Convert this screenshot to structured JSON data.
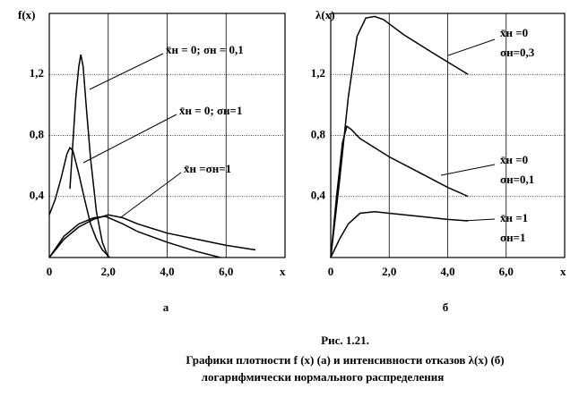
{
  "chart_data": [
    {
      "type": "line",
      "ylabel": "f(x)",
      "xlabel": "x",
      "panel": "а",
      "xlim": [
        0,
        8
      ],
      "ylim": [
        0,
        1.6
      ],
      "xticks": [
        0,
        {
          "value": 2,
          "label": "2,0"
        },
        {
          "value": 4,
          "label": "4,0"
        },
        {
          "value": 6,
          "label": "6,0"
        }
      ],
      "yticks": [
        {
          "value": 0.4,
          "label": "0,4"
        },
        {
          "value": 0.8,
          "label": "0,8"
        },
        {
          "value": 1.2,
          "label": "1,2"
        }
      ],
      "series": [
        {
          "color": "#000000",
          "x": [
            0.7,
            0.8,
            0.9,
            1.0,
            1.07,
            1.15,
            1.25,
            1.4,
            1.6,
            1.8,
            2.0
          ],
          "values": [
            0.45,
            0.75,
            1.05,
            1.25,
            1.33,
            1.25,
            1.0,
            0.65,
            0.3,
            0.1,
            0.0
          ]
        },
        {
          "color": "#000000",
          "x": [
            0,
            0.2,
            0.4,
            0.6,
            0.7,
            0.8,
            1.0,
            1.2,
            1.4,
            1.6,
            1.8,
            2.05
          ],
          "values": [
            0.28,
            0.38,
            0.52,
            0.68,
            0.72,
            0.7,
            0.55,
            0.38,
            0.22,
            0.12,
            0.05,
            0
          ]
        },
        {
          "color": "#000000",
          "x": [
            0,
            0.5,
            1.0,
            1.5,
            2.0,
            2.5,
            3,
            4,
            5,
            6,
            7
          ],
          "values": [
            0,
            0.12,
            0.2,
            0.25,
            0.28,
            0.26,
            0.22,
            0.16,
            0.12,
            0.08,
            0.05
          ]
        },
        {
          "color": "#000000",
          "x": [
            0,
            0.5,
            1.0,
            1.5,
            1.9,
            2.5,
            3,
            4,
            5,
            5.8
          ],
          "values": [
            0,
            0.14,
            0.22,
            0.26,
            0.27,
            0.22,
            0.17,
            0.1,
            0.04,
            0
          ]
        }
      ],
      "annotations": [
        [
          "x̄н = 0;  σн = 0,1"
        ],
        [
          "x̄н = 0; σн=1"
        ],
        [
          "x̄н =σн=1"
        ]
      ]
    },
    {
      "type": "line",
      "ylabel": "λ(x)",
      "xlabel": "x",
      "panel": "б",
      "xlim": [
        0,
        8
      ],
      "ylim": [
        0,
        1.6
      ],
      "xticks": [
        0,
        {
          "value": 2,
          "label": "2,0"
        },
        {
          "value": 4,
          "label": "4,0"
        },
        {
          "value": 6,
          "label": "6,0"
        }
      ],
      "yticks": [
        {
          "value": 0.4,
          "label": "0,4"
        },
        {
          "value": 0.8,
          "label": "0,8"
        },
        {
          "value": 1.2,
          "label": "1,2"
        }
      ],
      "series": [
        {
          "color": "#000000",
          "x": [
            0,
            0.3,
            0.6,
            0.9,
            1.2,
            1.5,
            1.8,
            2.5,
            3.5,
            4.7
          ],
          "values": [
            0,
            0.5,
            1.05,
            1.45,
            1.57,
            1.58,
            1.56,
            1.46,
            1.34,
            1.2
          ]
        },
        {
          "color": "#000000",
          "x": [
            0,
            0.2,
            0.4,
            0.55,
            0.7,
            1.0,
            2,
            3,
            4,
            4.7
          ],
          "values": [
            0,
            0.4,
            0.75,
            0.86,
            0.84,
            0.78,
            0.66,
            0.56,
            0.46,
            0.4
          ]
        },
        {
          "color": "#000000",
          "x": [
            0,
            0.3,
            0.6,
            1.0,
            1.5,
            2,
            3,
            4,
            4.7
          ],
          "values": [
            0,
            0.12,
            0.22,
            0.29,
            0.3,
            0.29,
            0.27,
            0.25,
            0.24
          ]
        }
      ],
      "annotations": [
        [
          "x̄н =0",
          "σн=0,3"
        ],
        [
          "x̄н =0",
          "σн=0,1"
        ],
        [
          "x̄н =1",
          "σн=1"
        ]
      ]
    }
  ],
  "caption": [
    "Рис. 1.21.",
    "Графики плотности f (x) (а) и интенсивности отказов λ(x) (б)",
    "логарифмически нормального распределения"
  ]
}
